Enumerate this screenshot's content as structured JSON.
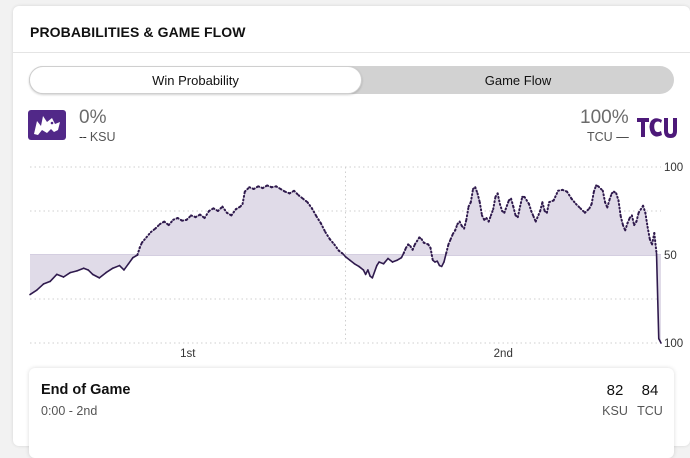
{
  "section_title": "PROBABILITIES & GAME FLOW",
  "tabs": [
    {
      "label": "Win Probability",
      "active": true
    },
    {
      "label": "Game Flow",
      "active": false
    }
  ],
  "away": {
    "abbr": "KSU",
    "prob": "0%",
    "legend_dash": "--",
    "logo_icon": "kansas-state-wildcat-logo",
    "color": "#512888"
  },
  "home": {
    "abbr": "TCU",
    "prob": "100%",
    "legend_dash": "—",
    "logo_icon": "tcu-logo",
    "color": "#4d1979"
  },
  "colors": {
    "fill": "#e0dbe8",
    "line": "#2f1a4d"
  },
  "chart_data": {
    "type": "line",
    "y_ticks": [
      "100",
      "50",
      "100"
    ],
    "x_ticks": [
      "1st",
      "2nd"
    ],
    "ylim": [
      -100,
      100
    ],
    "grid": true,
    "series": [
      {
        "values": [
          [
            0,
            -45
          ],
          [
            3,
            -40
          ],
          [
            6,
            -33
          ],
          [
            9,
            -30
          ],
          [
            12,
            -22
          ],
          [
            15,
            -25
          ],
          [
            18,
            -20
          ],
          [
            21,
            -18
          ],
          [
            24,
            -15
          ],
          [
            26,
            -17
          ],
          [
            28,
            -22
          ],
          [
            31,
            -26
          ],
          [
            34,
            -20
          ],
          [
            37,
            -15
          ],
          [
            40,
            -12
          ],
          [
            42,
            -17
          ],
          [
            44,
            -10
          ],
          [
            46,
            -3
          ],
          [
            48,
            0
          ],
          [
            49,
            8
          ],
          [
            50,
            14
          ],
          [
            51,
            17
          ],
          [
            52,
            20
          ],
          [
            54,
            26
          ],
          [
            56,
            30
          ],
          [
            58,
            35
          ],
          [
            60,
            38
          ],
          [
            62,
            34
          ],
          [
            64,
            40
          ],
          [
            66,
            42
          ],
          [
            68,
            39
          ],
          [
            70,
            40
          ],
          [
            72,
            45
          ],
          [
            74,
            43
          ],
          [
            76,
            46
          ],
          [
            78,
            42
          ],
          [
            80,
            50
          ],
          [
            82,
            53
          ],
          [
            84,
            50
          ],
          [
            86,
            55
          ],
          [
            88,
            48
          ],
          [
            90,
            45
          ],
          [
            92,
            52
          ],
          [
            94,
            55
          ],
          [
            95,
            58
          ],
          [
            96,
            72
          ],
          [
            98,
            77
          ],
          [
            100,
            75
          ],
          [
            102,
            78
          ],
          [
            104,
            76
          ],
          [
            106,
            79
          ],
          [
            108,
            77
          ],
          [
            110,
            78
          ],
          [
            112,
            75
          ],
          [
            114,
            72
          ],
          [
            116,
            70
          ],
          [
            118,
            73
          ],
          [
            120,
            68
          ],
          [
            122,
            64
          ],
          [
            124,
            60
          ],
          [
            126,
            53
          ],
          [
            128,
            44
          ],
          [
            130,
            36
          ],
          [
            132,
            26
          ],
          [
            134,
            18
          ],
          [
            136,
            12
          ],
          [
            138,
            5
          ],
          [
            140,
            1
          ],
          [
            141,
            -2
          ],
          [
            143,
            -6
          ],
          [
            145,
            -10
          ],
          [
            147,
            -13
          ],
          [
            149,
            -17
          ],
          [
            150,
            -22
          ],
          [
            151,
            -17
          ],
          [
            152,
            -24
          ],
          [
            153,
            -26
          ],
          [
            155,
            -12
          ],
          [
            156,
            -8
          ],
          [
            158,
            -10
          ],
          [
            160,
            -4
          ],
          [
            162,
            -8
          ],
          [
            164,
            -6
          ],
          [
            166,
            -3
          ],
          [
            167,
            2
          ],
          [
            168,
            8
          ],
          [
            169,
            12
          ],
          [
            170,
            10
          ],
          [
            171,
            6
          ],
          [
            172,
            12
          ],
          [
            174,
            20
          ],
          [
            175,
            18
          ],
          [
            176,
            14
          ],
          [
            178,
            12
          ],
          [
            179,
            8
          ],
          [
            180,
            -6
          ],
          [
            181,
            -8
          ],
          [
            182,
            -7
          ],
          [
            183,
            -12
          ],
          [
            184,
            -13
          ],
          [
            185,
            -8
          ],
          [
            186,
            2
          ],
          [
            187,
            12
          ],
          [
            188,
            18
          ],
          [
            189,
            24
          ],
          [
            190,
            28
          ],
          [
            191,
            35
          ],
          [
            192,
            38
          ],
          [
            193,
            33
          ],
          [
            194,
            30
          ],
          [
            195,
            40
          ],
          [
            196,
            55
          ],
          [
            197,
            60
          ],
          [
            198,
            75
          ],
          [
            199,
            77
          ],
          [
            200,
            70
          ],
          [
            201,
            60
          ],
          [
            202,
            45
          ],
          [
            203,
            40
          ],
          [
            204,
            42
          ],
          [
            205,
            38
          ],
          [
            206,
            45
          ],
          [
            207,
            52
          ],
          [
            208,
            66
          ],
          [
            209,
            70
          ],
          [
            210,
            58
          ],
          [
            211,
            50
          ],
          [
            212,
            48
          ],
          [
            214,
            62
          ],
          [
            215,
            64
          ],
          [
            216,
            55
          ],
          [
            217,
            45
          ],
          [
            218,
            43
          ],
          [
            219,
            55
          ],
          [
            220,
            66
          ],
          [
            221,
            66
          ],
          [
            223,
            58
          ],
          [
            224,
            50
          ],
          [
            225,
            44
          ],
          [
            226,
            38
          ],
          [
            228,
            50
          ],
          [
            229,
            60
          ],
          [
            230,
            50
          ],
          [
            231,
            48
          ],
          [
            232,
            60
          ],
          [
            234,
            62
          ],
          [
            236,
            73
          ],
          [
            238,
            74
          ],
          [
            240,
            72
          ],
          [
            242,
            64
          ],
          [
            244,
            58
          ],
          [
            246,
            53
          ],
          [
            248,
            48
          ],
          [
            250,
            53
          ],
          [
            251,
            58
          ],
          [
            252,
            72
          ],
          [
            253,
            79
          ],
          [
            254,
            78
          ],
          [
            256,
            73
          ],
          [
            257,
            60
          ],
          [
            258,
            54
          ],
          [
            259,
            63
          ],
          [
            260,
            70
          ],
          [
            261,
            72
          ],
          [
            262,
            70
          ],
          [
            263,
            62
          ],
          [
            264,
            44
          ],
          [
            265,
            34
          ],
          [
            266,
            28
          ],
          [
            267,
            36
          ],
          [
            268,
            42
          ],
          [
            269,
            45
          ],
          [
            270,
            34
          ],
          [
            271,
            38
          ],
          [
            272,
            48
          ],
          [
            274,
            56
          ],
          [
            275,
            48
          ],
          [
            276,
            32
          ],
          [
            277,
            18
          ],
          [
            278,
            12
          ],
          [
            279,
            25
          ],
          [
            280,
            2
          ],
          [
            281,
            -95
          ],
          [
            282,
            -100
          ]
        ]
      }
    ]
  },
  "footer": {
    "status": "End of Game",
    "clock": "0:00 - 2nd",
    "away_score": "82",
    "home_score": "84",
    "away_abbr": "KSU",
    "home_abbr": "TCU"
  }
}
